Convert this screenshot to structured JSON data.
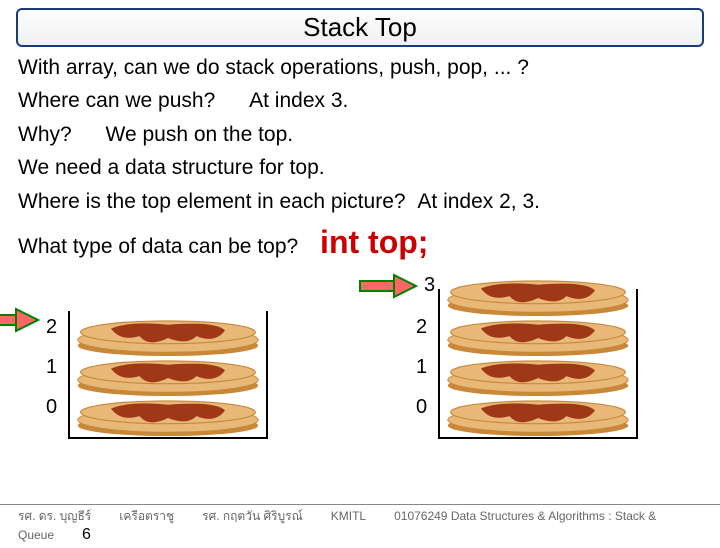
{
  "title": "Stack Top",
  "lines": {
    "l1": "With array, can we do stack operations, push, pop, ... ?",
    "l2q": "Where can we push?",
    "l2a": "At index 3.",
    "l3q": "Why?",
    "l3a": "We push on the top.",
    "l4": "We need a data structure for top.",
    "l5q": "Where is the top element in each picture?",
    "l5a": "At index 2, 3.",
    "l6q": "What type of data can be top?",
    "l6a": "int top;"
  },
  "stacks": {
    "left": {
      "indices": [
        "2",
        "1",
        "0"
      ],
      "rows": 3,
      "arrow_color_fill": "#ff6666",
      "arrow_color_stroke": "#008000"
    },
    "right": {
      "indices": [
        "3",
        "2",
        "1",
        "0"
      ],
      "rows": 4,
      "arrow_color_fill": "#ff6666",
      "arrow_color_stroke": "#008000"
    },
    "pancake": {
      "base": "#e8b878",
      "edge": "#c88838",
      "sauce": "#a03818"
    }
  },
  "footer": {
    "c1": "รศ. ดร. บุญธีร์",
    "c2": "เครือตราชู",
    "c3": "รศ. กฤตวัน   ศิริบูรณ์",
    "c4": "KMITL",
    "c5": "01076249 Data Structures & Algorithms : Stack &",
    "c6": "Queue",
    "page": "6"
  },
  "colors": {
    "title_border": "#1a3a7a",
    "int_top": "#cc0000"
  }
}
